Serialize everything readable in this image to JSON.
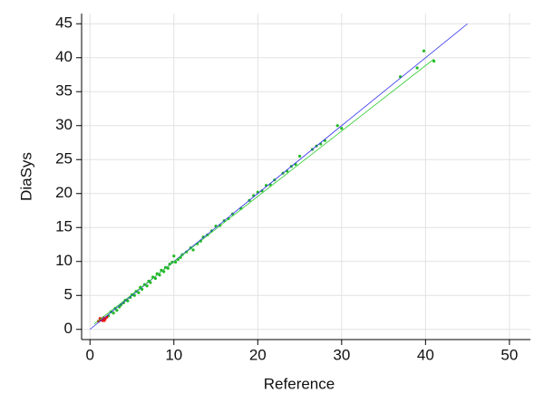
{
  "chart_data": {
    "type": "scatter",
    "x_label": "Reference",
    "y_label": "DiaSys",
    "xlim": [
      -1,
      52.5
    ],
    "ylim": [
      -1.5,
      46.5
    ],
    "xticks": [
      0,
      10,
      20,
      30,
      40,
      50
    ],
    "yticks": [
      0,
      5,
      10,
      15,
      20,
      25,
      30,
      35,
      40,
      45
    ],
    "grid": true,
    "series": [
      {
        "color": "#22bb22",
        "x": [
          2.2,
          2.5,
          2.8,
          3.0,
          3.2,
          3.5,
          3.7,
          4.0,
          4.2,
          4.5,
          4.8,
          5.0,
          5.3,
          5.5,
          5.8,
          6.0,
          6.2,
          6.5,
          6.8,
          7.0,
          7.2,
          7.5,
          7.8,
          8.0,
          8.3,
          8.5,
          8.8,
          9.0,
          9.3,
          9.5,
          9.8,
          10.0,
          10.2,
          10.5,
          10.8,
          11.0,
          11.5,
          12.0,
          12.3,
          12.8,
          13.2,
          13.5,
          14.0,
          14.5,
          15.0,
          15.5,
          16.0,
          16.5,
          17.0,
          18.0,
          19.0,
          19.5,
          20.0,
          20.5,
          21.0,
          21.5,
          22.0,
          23.0,
          23.5,
          24.0,
          24.5,
          25.0,
          26.5,
          27.0,
          27.5,
          28.0,
          29.5,
          30.0,
          37.0,
          39.0,
          39.8,
          41.0
        ],
        "values": [
          2.0,
          2.6,
          2.4,
          3.1,
          2.8,
          3.3,
          3.6,
          3.9,
          4.3,
          4.2,
          4.7,
          5.1,
          5.0,
          5.6,
          5.4,
          6.2,
          5.9,
          6.6,
          6.4,
          7.1,
          6.9,
          7.7,
          7.5,
          8.2,
          8.0,
          8.7,
          8.5,
          9.1,
          9.0,
          9.6,
          9.9,
          10.8,
          9.9,
          10.3,
          10.6,
          11.0,
          11.4,
          12.0,
          11.7,
          12.6,
          13.0,
          13.6,
          13.9,
          14.5,
          15.2,
          15.3,
          16.0,
          16.3,
          17.0,
          17.8,
          19.0,
          19.7,
          20.2,
          20.4,
          21.2,
          21.3,
          22.0,
          23.0,
          23.3,
          24.0,
          24.3,
          25.5,
          26.5,
          27.0,
          27.3,
          27.8,
          30.0,
          29.6,
          37.2,
          38.5,
          41.0,
          39.5
        ]
      },
      {
        "color": "#ee1111",
        "x": [
          1.0,
          1.3,
          1.5,
          1.6,
          1.8,
          2.0,
          1.2,
          1.7
        ],
        "values": [
          1.2,
          1.4,
          1.3,
          1.7,
          1.5,
          1.8,
          1.6,
          1.3
        ]
      },
      {
        "type": "line",
        "color": "#3333ee",
        "x": [
          0,
          45
        ],
        "values": [
          0,
          45
        ]
      },
      {
        "type": "line",
        "color": "#33cc33",
        "x": [
          0.5,
          41
        ],
        "values": [
          0.8,
          39.8
        ]
      }
    ]
  }
}
